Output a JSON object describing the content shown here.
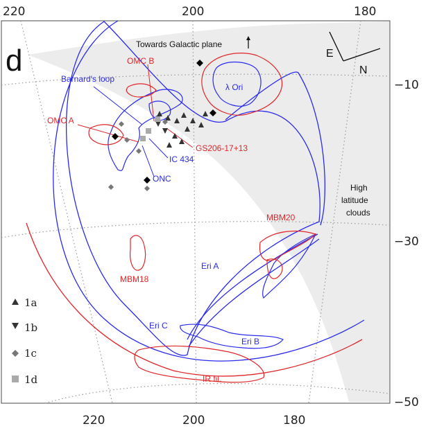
{
  "panel_letter": "d",
  "axes": {
    "top_ticks": [
      "220",
      "200",
      "180"
    ],
    "bottom_ticks": [
      "220",
      "200",
      "180"
    ],
    "right_ticks": [
      "−10",
      "−30",
      "−50"
    ]
  },
  "annotations": {
    "galactic_plane": "Towards Galactic plane",
    "compass_e": "E",
    "compass_n": "N"
  },
  "labels": {
    "omc_b": "OMC B",
    "barnards_loop": "Barnard's loop",
    "lambda_ori": "λ Ori",
    "omc_a": "OMC A",
    "gs206": "GS206-17+13",
    "ic434": "IC 434",
    "onc": "ONC",
    "high_lat_1": "High",
    "high_lat_2": "latitude",
    "high_lat_3": "clouds",
    "mbm20": "MBM20",
    "mbm18": "MBM18",
    "eri_a": "Eri A",
    "eri_b": "Eri B",
    "eri_c": "Eri C",
    "ir_fil": "IR fil."
  },
  "legend": [
    {
      "label": "1a",
      "marker": "triangle-up-icon"
    },
    {
      "label": "1b",
      "marker": "triangle-down-icon"
    },
    {
      "label": "1c",
      "marker": "diamond-icon"
    },
    {
      "label": "1d",
      "marker": "square-icon"
    }
  ],
  "colors": {
    "blue": "#2a2aee",
    "red": "#e0262a",
    "grey_shade": "#ececec",
    "grid": "#9a9a9a"
  }
}
